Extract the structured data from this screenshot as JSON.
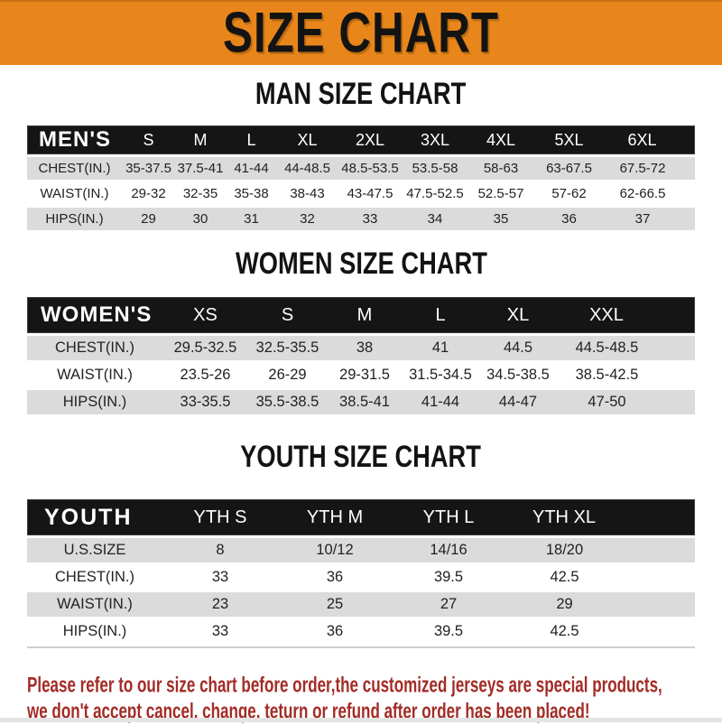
{
  "banner": {
    "title": "SIZE CHART"
  },
  "sections": [
    {
      "heading": "MAN SIZE CHART",
      "table": {
        "header": [
          "MEN'S",
          "S",
          "M",
          "L",
          "XL",
          "2XL",
          "3XL",
          "4XL",
          "5XL",
          "6XL"
        ],
        "rows": [
          [
            "CHEST(IN.)",
            "35-37.5",
            "37.5-41",
            "41-44",
            "44-48.5",
            "48.5-53.5",
            "53.5-58",
            "58-63",
            "63-67.5",
            "67.5-72"
          ],
          [
            "WAIST(IN.)",
            "29-32",
            "32-35",
            "35-38",
            "38-43",
            "43-47.5",
            "47.5-52.5",
            "52.5-57",
            "57-62",
            "62-66.5"
          ],
          [
            "HIPS(IN.)",
            "29",
            "30",
            "31",
            "32",
            "33",
            "34",
            "35",
            "36",
            "37"
          ]
        ]
      }
    },
    {
      "heading": "WOMEN SIZE CHART",
      "table": {
        "header": [
          "WOMEN'S",
          "XS",
          "S",
          "M",
          "L",
          "XL",
          "XXL"
        ],
        "rows": [
          [
            "CHEST(IN.)",
            "29.5-32.5",
            "32.5-35.5",
            "38",
            "41",
            "44.5",
            "44.5-48.5"
          ],
          [
            "WAIST(IN.)",
            "23.5-26",
            "26-29",
            "29-31.5",
            "31.5-34.5",
            "34.5-38.5",
            "38.5-42.5"
          ],
          [
            "HIPS(IN.)",
            "33-35.5",
            "35.5-38.5",
            "38.5-41",
            "41-44",
            "44-47",
            "47-50"
          ]
        ]
      }
    },
    {
      "heading": "YOUTH SIZE CHART",
      "table": {
        "header": [
          "YOUTH",
          "YTH S",
          "YTH M",
          "YTH L",
          "YTH XL"
        ],
        "rows": [
          [
            "U.S.SIZE",
            "8",
            "10/12",
            "14/16",
            "18/20"
          ],
          [
            "CHEST(IN.)",
            "33",
            "36",
            "39.5",
            "42.5"
          ],
          [
            "WAIST(IN.)",
            "23",
            "25",
            "27",
            "29"
          ],
          [
            "HIPS(IN.)",
            "33",
            "36",
            "39.5",
            "42.5"
          ]
        ]
      }
    }
  ],
  "footer": {
    "line1": "Please refer to our size chart before order,the customized jerseys are special products,",
    "line2": "we don't accept cancel, change, teturn or refund after order has been placed!"
  },
  "colors": {
    "banner_orange": "#E8861C",
    "header_black": "#151515",
    "row_gray": "#DBDBDB",
    "footer_red": "#A32C26"
  }
}
